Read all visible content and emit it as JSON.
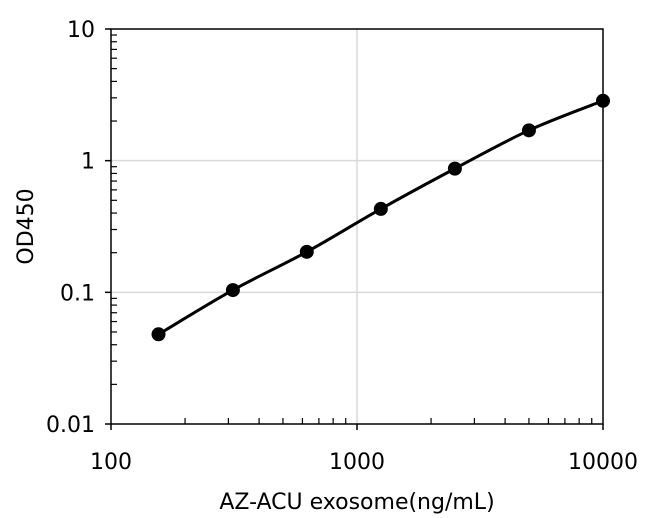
{
  "chart_data": {
    "type": "line",
    "title": "",
    "xlabel": "AZ-ACU exosome(ng/mL)",
    "ylabel": "OD450",
    "x_scale": "log",
    "y_scale": "log",
    "xlim": [
      100,
      10000
    ],
    "ylim": [
      0.01,
      10
    ],
    "x_ticks": [
      {
        "value": 100,
        "label": "100"
      },
      {
        "value": 1000,
        "label": "1000"
      },
      {
        "value": 10000,
        "label": "10000"
      }
    ],
    "y_ticks": [
      {
        "value": 0.01,
        "label": "0.01"
      },
      {
        "value": 0.1,
        "label": "0.1"
      },
      {
        "value": 1,
        "label": "1"
      },
      {
        "value": 10,
        "label": "10"
      }
    ],
    "grid": true,
    "legend": "none",
    "series": [
      {
        "x": [
          156,
          313,
          625,
          1250,
          2500,
          5000,
          10000
        ],
        "y": [
          0.048,
          0.104,
          0.203,
          0.43,
          0.87,
          1.7,
          2.85
        ],
        "color": "#000000",
        "marker": "circle"
      }
    ]
  }
}
